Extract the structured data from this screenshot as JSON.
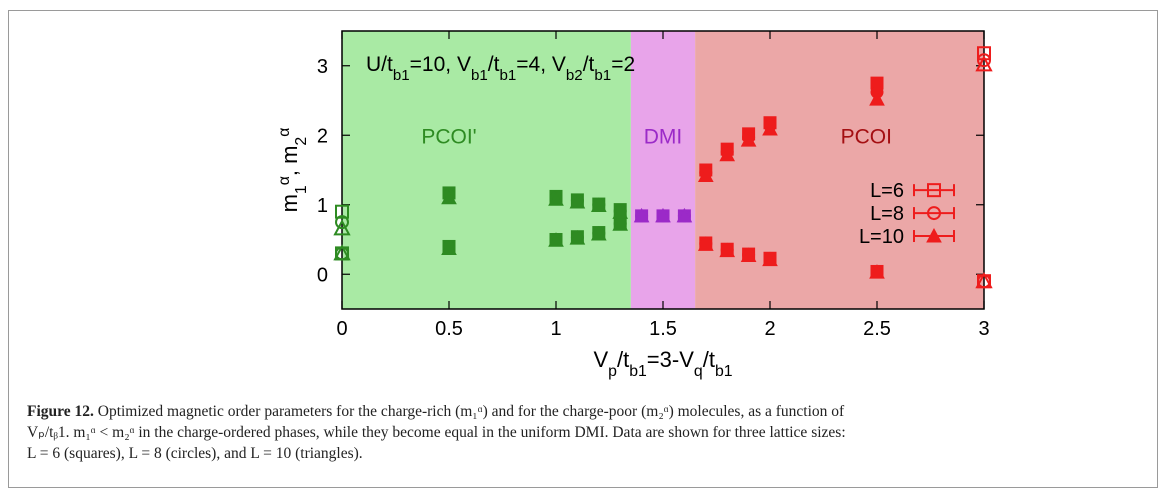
{
  "chart_data": {
    "type": "scatter",
    "xlabel": "V_p/t_b1=3-V_q/t_b1",
    "ylabel": "m_1^α, m_2^α",
    "xlim": [
      0,
      3
    ],
    "ylim": [
      -0.5,
      3.5
    ],
    "x_ticks": [
      0,
      0.5,
      1,
      1.5,
      2,
      2.5,
      3
    ],
    "x_tick_labels": [
      "0",
      "0.5",
      "1",
      "1.5",
      "2",
      "2.5",
      "3"
    ],
    "y_ticks": [
      0,
      1,
      2,
      3
    ],
    "y_tick_labels": [
      "0",
      "1",
      "2",
      "3"
    ],
    "grid": false,
    "legend_position": "right",
    "annotation": "U/t_b1=10, V_b1/t_b1=4, V_b2/t_b1=2",
    "regions": [
      {
        "label": "PCOI'",
        "x_range": [
          0,
          1.35
        ],
        "color": "#a9eaa4",
        "label_color": "#2e8b22"
      },
      {
        "label": "DMI",
        "x_range": [
          1.35,
          1.65
        ],
        "color": "#e8a4ea",
        "label_color": "#9b2ac8"
      },
      {
        "label": "PCOI",
        "x_range": [
          1.65,
          3
        ],
        "color": "#eba7a7",
        "label_color": "#a40f12"
      }
    ],
    "series": [
      {
        "name": "L=6",
        "marker": "square",
        "points": [
          [
            0,
            0.3
          ],
          [
            0,
            0.9
          ],
          [
            0.5,
            0.4
          ],
          [
            0.5,
            1.17
          ],
          [
            1,
            0.5
          ],
          [
            1,
            1.12
          ],
          [
            1.1,
            0.54
          ],
          [
            1.1,
            1.07
          ],
          [
            1.2,
            0.6
          ],
          [
            1.2,
            1.01
          ],
          [
            1.3,
            0.75
          ],
          [
            1.3,
            0.93
          ],
          [
            1.4,
            0.84
          ],
          [
            1.5,
            0.84
          ],
          [
            1.6,
            0.84
          ],
          [
            1.7,
            0.45
          ],
          [
            1.7,
            1.5
          ],
          [
            1.8,
            0.36
          ],
          [
            1.8,
            1.8
          ],
          [
            1.9,
            0.29
          ],
          [
            1.9,
            2.02
          ],
          [
            2,
            0.23
          ],
          [
            2,
            2.18
          ],
          [
            2.5,
            0.04
          ],
          [
            2.5,
            2.75
          ],
          [
            3,
            -0.1
          ],
          [
            3,
            3.18
          ]
        ]
      },
      {
        "name": "L=8",
        "marker": "circle",
        "points": [
          [
            0,
            0.3
          ],
          [
            0,
            0.75
          ],
          [
            0.5,
            0.39
          ],
          [
            0.5,
            1.14
          ],
          [
            1,
            0.5
          ],
          [
            1,
            1.1
          ],
          [
            1.1,
            0.53
          ],
          [
            1.1,
            1.06
          ],
          [
            1.2,
            0.59
          ],
          [
            1.2,
            1.0
          ],
          [
            1.3,
            0.73
          ],
          [
            1.3,
            0.91
          ],
          [
            1.4,
            0.84
          ],
          [
            1.5,
            0.84
          ],
          [
            1.6,
            0.84
          ],
          [
            1.7,
            0.44
          ],
          [
            1.7,
            1.46
          ],
          [
            1.8,
            0.35
          ],
          [
            1.8,
            1.76
          ],
          [
            1.9,
            0.28
          ],
          [
            1.9,
            1.97
          ],
          [
            2,
            0.22
          ],
          [
            2,
            2.14
          ],
          [
            2.5,
            0.04
          ],
          [
            2.5,
            2.62
          ],
          [
            3,
            -0.1
          ],
          [
            3,
            3.08
          ]
        ]
      },
      {
        "name": "L=10",
        "marker": "triangle",
        "points": [
          [
            0,
            0.3
          ],
          [
            0,
            0.66
          ],
          [
            0.5,
            0.37
          ],
          [
            0.5,
            1.1
          ],
          [
            1,
            0.49
          ],
          [
            1,
            1.08
          ],
          [
            1.1,
            0.52
          ],
          [
            1.1,
            1.04
          ],
          [
            1.2,
            0.58
          ],
          [
            1.2,
            0.99
          ],
          [
            1.3,
            0.72
          ],
          [
            1.3,
            0.89
          ],
          [
            1.4,
            0.84
          ],
          [
            1.5,
            0.84
          ],
          [
            1.6,
            0.84
          ],
          [
            1.7,
            0.43
          ],
          [
            1.7,
            1.42
          ],
          [
            1.8,
            0.34
          ],
          [
            1.8,
            1.72
          ],
          [
            1.9,
            0.27
          ],
          [
            1.9,
            1.93
          ],
          [
            2,
            0.21
          ],
          [
            2,
            2.09
          ],
          [
            2.5,
            0.03
          ],
          [
            2.5,
            2.52
          ],
          [
            3,
            -0.1
          ],
          [
            3,
            3.02
          ]
        ]
      }
    ]
  },
  "caption": {
    "lead": "Figure 12.",
    "line1": " Optimized magnetic order parameters for the charge-rich (m₁ᵅ) and for the charge-poor (m₂ᵅ) molecules, as a function of",
    "line2": "Vₚ/tᵦ1. m₁ᵅ < m₂ᵅ in the charge-ordered phases, while they become equal in the uniform DMI. Data are shown for three lattice sizes:",
    "line3": "L = 6 (squares), L = 8 (circles), and L = 10 (triangles)."
  }
}
